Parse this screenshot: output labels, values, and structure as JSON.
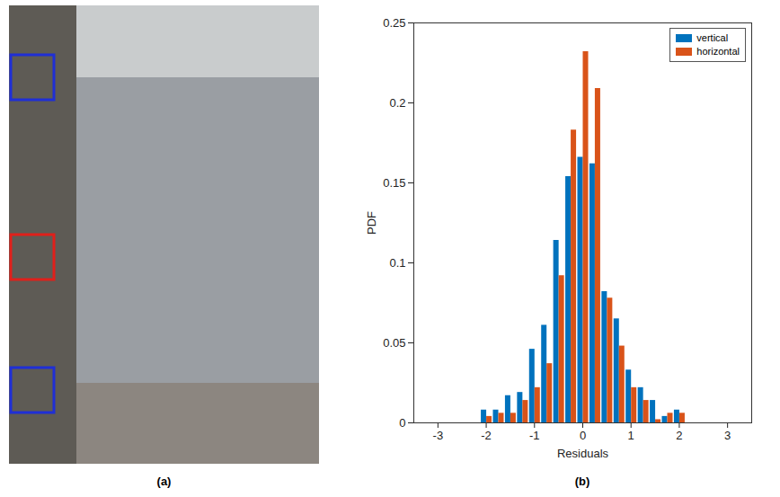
{
  "chart_data": {
    "type": "bar",
    "x_label": "Residuals",
    "y_label": "PDF",
    "annotations": [
      "(a)",
      "(b)"
    ],
    "x": [
      -2,
      -1.75,
      -1.5,
      -1.25,
      -1,
      -0.75,
      -0.5,
      -0.25,
      0,
      0.25,
      0.5,
      0.75,
      1,
      1.25,
      1.5,
      1.75,
      2
    ],
    "series": [
      {
        "name": "vertical",
        "color": "#0072bd",
        "values": [
          0.008,
          0.008,
          0.017,
          0.019,
          0.046,
          0.061,
          0.114,
          0.154,
          0.166,
          0.162,
          0.082,
          0.065,
          0.033,
          0.022,
          0.014,
          0.004,
          0.008
        ]
      },
      {
        "name": "horizontal",
        "color": "#d95319",
        "values": [
          0.004,
          0.006,
          0.006,
          0.014,
          0.022,
          0.037,
          0.092,
          0.183,
          0.232,
          0.209,
          0.078,
          0.048,
          0.022,
          0.014,
          0.002,
          0.006,
          0.006
        ]
      }
    ],
    "xlim": [
      -3.5,
      3.5
    ],
    "xticks": [
      -3,
      -2,
      -1,
      0,
      1,
      2,
      3
    ],
    "ylim": [
      0,
      0.25
    ],
    "yticks": [
      0,
      0.05,
      0.1,
      0.15,
      0.2,
      0.25
    ],
    "legend": "top-right",
    "grid": false
  }
}
